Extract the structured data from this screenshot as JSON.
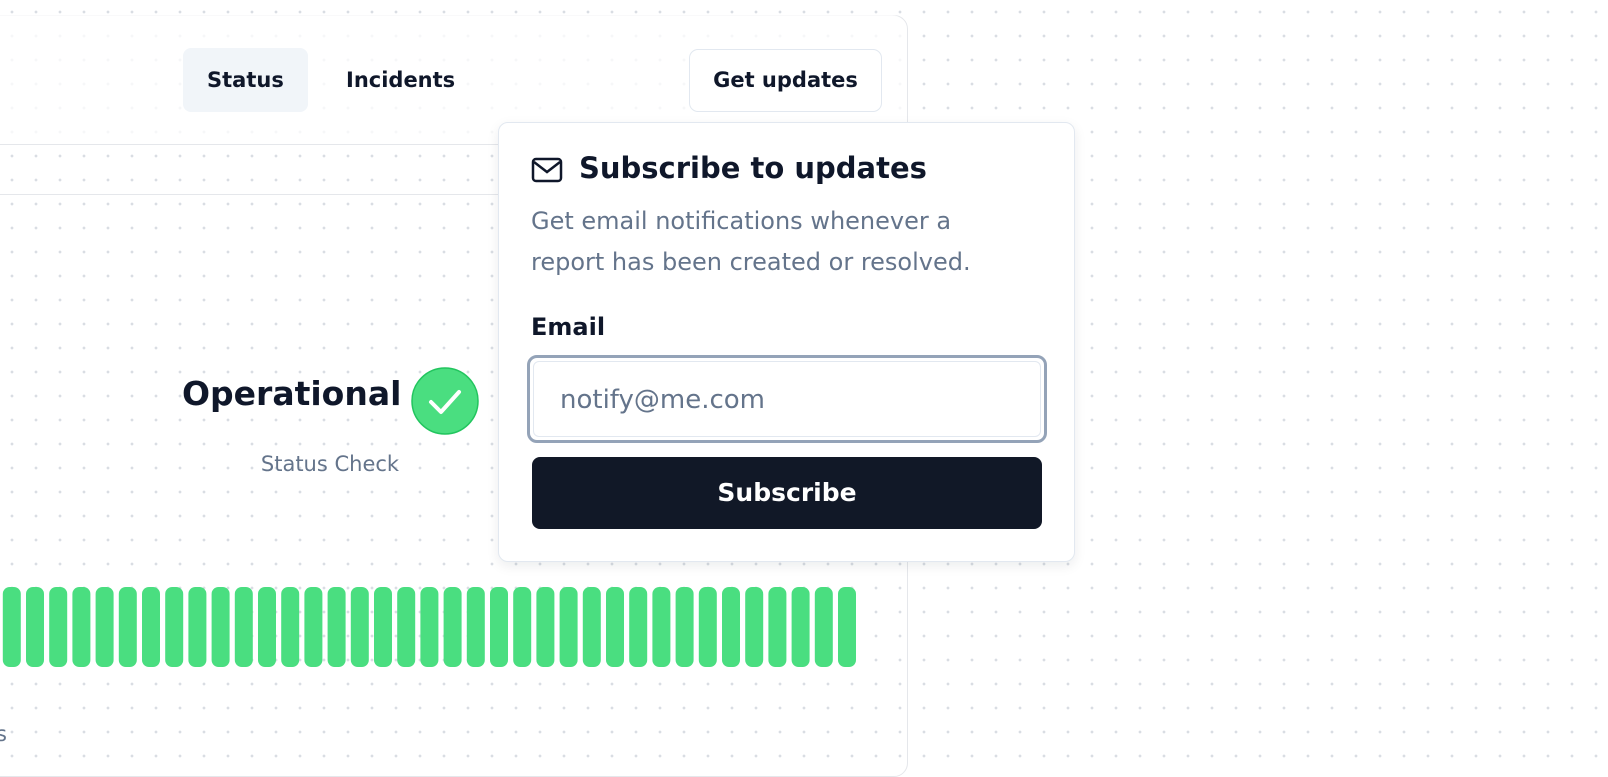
{
  "nav": {
    "items": [
      "Status",
      "Incidents"
    ],
    "action": "Get updates"
  },
  "status": {
    "label": "Operational",
    "caption": "Status Check",
    "footer_fragment": "s"
  },
  "popover": {
    "title": "Subscribe to updates",
    "description": "Get email notifications whenever a report has been created or resolved.",
    "email_label": "Email",
    "email_placeholder": "notify@me.com",
    "submit": "Subscribe"
  }
}
